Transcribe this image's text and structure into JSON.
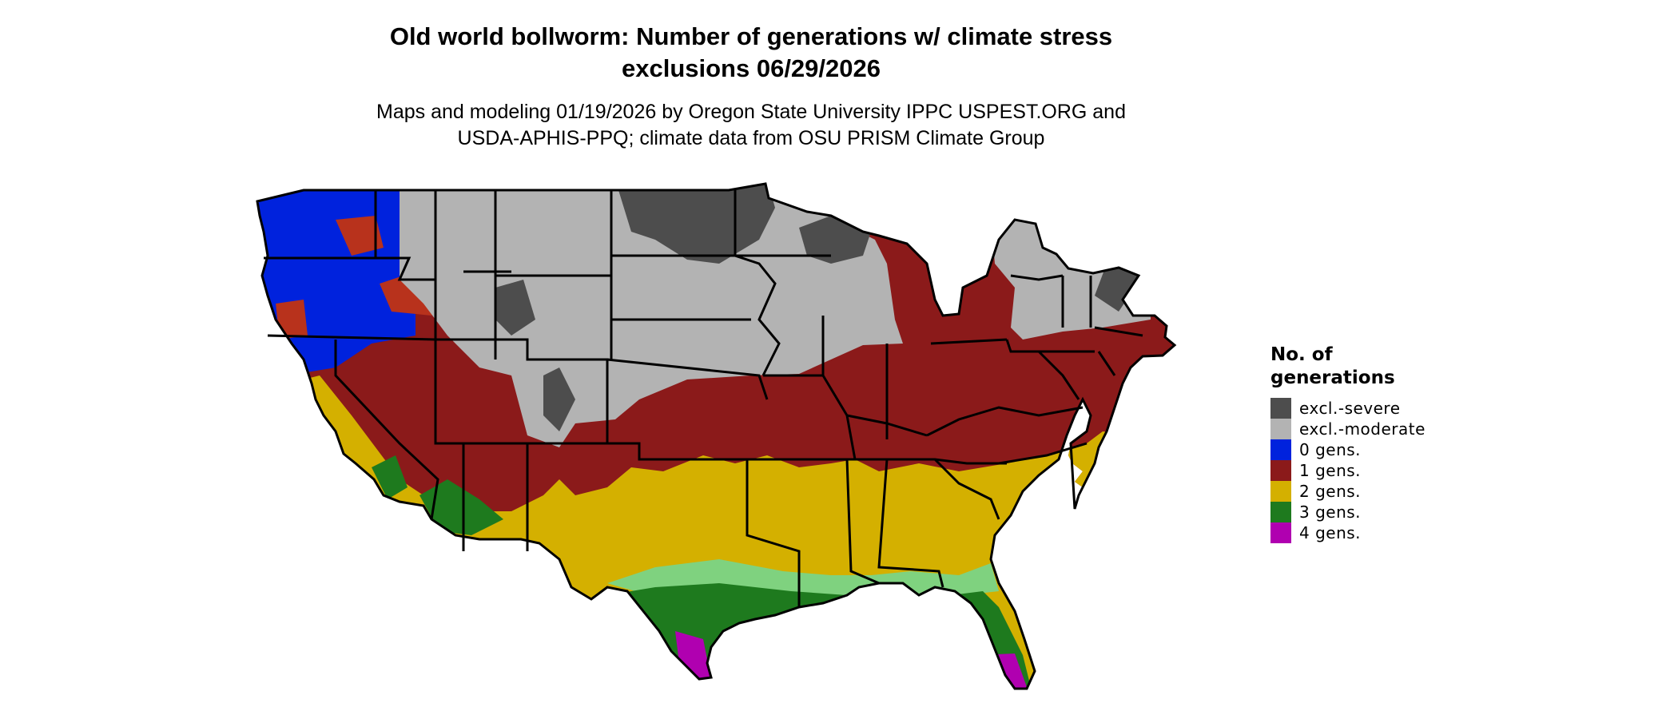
{
  "header": {
    "title_line1": "Old world bollworm: Number of generations w/ climate stress",
    "title_line2": "exclusions 06/29/2026",
    "subtitle_line1": "Maps and modeling 01/19/2026 by Oregon State University IPPC USPEST.ORG and",
    "subtitle_line2": "USDA-APHIS-PPQ; climate data from OSU PRISM Climate Group"
  },
  "legend": {
    "title_line1": "No. of",
    "title_line2": "generations",
    "items": [
      {
        "label": "excl.-severe",
        "color": "#4d4d4d"
      },
      {
        "label": "excl.-moderate",
        "color": "#b3b3b3"
      },
      {
        "label": "0 gens.",
        "color": "#0022dd"
      },
      {
        "label": "1 gens.",
        "color": "#8b1a1a"
      },
      {
        "label": "2 gens.",
        "color": "#d4b000"
      },
      {
        "label": "3 gens.",
        "color": "#1e7a1e"
      },
      {
        "label": "4 gens.",
        "color": "#b000b0"
      }
    ]
  },
  "map": {
    "region": "Conterminous United States",
    "boundary_color": "#000000",
    "zones": [
      "excl.-severe",
      "excl.-moderate",
      "0 gens.",
      "1 gens.",
      "2 gens.",
      "3 gens.",
      "4 gens."
    ]
  }
}
